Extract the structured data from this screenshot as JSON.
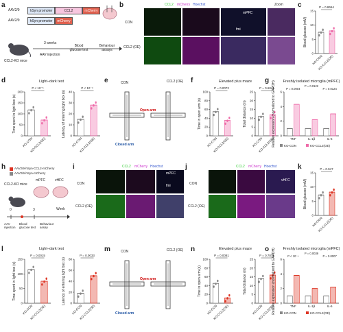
{
  "panel_letters": [
    "a",
    "b",
    "c",
    "d",
    "e",
    "f",
    "g",
    "h",
    "i",
    "j",
    "k",
    "l",
    "m",
    "n",
    "o"
  ],
  "a": {
    "vector1": {
      "prefix": "AAV2/9",
      "promoter": "hSyn promoter",
      "gene": "CCL2",
      "tag": "mCherry"
    },
    "vector2": {
      "prefix": "AAV2/9",
      "promoter": "hSyn promoter",
      "tag": "mCherry"
    },
    "mouse_label": "CCL2-KO mice",
    "step1": "3 weeks",
    "step1_sub": "AAV injection",
    "step2": "Blood glucose test",
    "step3": "Behaviour assays"
  },
  "b": {
    "header_ccl2": "CCL2",
    "header_mcherry": "mCherry",
    "header_hoechst": "Hoechst",
    "zoom": "Zoom",
    "row_con": "CON",
    "row_oe": "CCL2 (OE)",
    "region": "mPFC",
    "fmi": "fmi"
  },
  "i": {
    "header_ccl2": "CCL2",
    "header_mcherry": "mCherry",
    "header_hoechst": "Hoechst",
    "row_con": "CON",
    "row_oe": "CCL2 (OE)",
    "region": "mPFC",
    "fmi": "fmi"
  },
  "j": {
    "header_ccl2": "CCL2",
    "header_mcherry": "mCherry",
    "header_hoechst": "Hoechst",
    "row_con": "CON",
    "row_oe": "CCL2 (OE)",
    "region": "vHFC"
  },
  "h": {
    "line1": "AAV2/9-hSyn-CCL2-mCherry",
    "line2": "AAV2/9-hSyn-mCherry",
    "mouse_label": "CCL2-KO mice",
    "region1": "mPFC",
    "region2": "vHFC",
    "t0": "0",
    "t3": "3",
    "week": "Week",
    "ev1": "AAV injection",
    "ev2": "Blood glucose test",
    "ev3": "Behaviour assay"
  },
  "e": {
    "con": "CON",
    "oe": "CCL2 (OE)",
    "open": "Open arm",
    "closed": "Closed arm"
  },
  "m": {
    "con": "CON",
    "oe": "CCL2 (OE)",
    "open": "Open arm",
    "closed": "Closed arm"
  },
  "colors": {
    "ctrl": "#888888",
    "oe_top": "#ee6aa8",
    "oe_bottom": "#dd3322",
    "green": "#33cc33",
    "magenta": "#cc33cc",
    "label_red": "#cc0000",
    "label_blue": "#1a4fa0"
  },
  "chart_data": [
    {
      "panel": "c",
      "type": "bar",
      "ylabel": "Blood glucose (mM)",
      "ylim": [
        0,
        15
      ],
      "yticks": [
        0,
        5,
        10,
        15
      ],
      "categories": [
        "KO-CON",
        "KO-CCL2(OE)"
      ],
      "values": [
        7.5,
        8.0
      ],
      "p": "P = 0.8664",
      "color": "oe_top"
    },
    {
      "panel": "d1",
      "type": "bar",
      "title": "Light–dark test",
      "ylabel": "Time spent in light box (s)",
      "ylim": [
        0,
        200
      ],
      "yticks": [
        0,
        50,
        100,
        150,
        200
      ],
      "categories": [
        "KO-CON",
        "KO-CCL2(OE)"
      ],
      "values": [
        118,
        72
      ],
      "p": "P < 10⁻⁶",
      "color": "oe_top"
    },
    {
      "panel": "d2",
      "type": "bar",
      "ylabel": "Latency of entering light box (s)",
      "ylim": [
        0,
        40
      ],
      "yticks": [
        0,
        10,
        20,
        30,
        40
      ],
      "categories": [
        "KO-CON",
        "KO-CCL2(OE)"
      ],
      "values": [
        15,
        28
      ],
      "p": "P < 10⁻⁴",
      "color": "oe_top"
    },
    {
      "panel": "f1",
      "type": "bar",
      "title": "Elevated plus maze",
      "ylabel": "Time in open arm (s)",
      "ylim": [
        0,
        100
      ],
      "yticks": [
        0,
        20,
        40,
        60,
        80,
        100
      ],
      "categories": [
        "KO-CON",
        "KO-CCL2(OE)"
      ],
      "values": [
        55,
        35
      ],
      "p": "P = 0.0072",
      "color": "oe_top"
    },
    {
      "panel": "f2",
      "type": "bar",
      "ylabel": "Total distance (m)",
      "ylim": [
        0,
        25
      ],
      "yticks": [
        0,
        5,
        10,
        15,
        20,
        25
      ],
      "categories": [
        "KO-CON",
        "KO-CCL2(OE)"
      ],
      "values": [
        11,
        12
      ],
      "p": "P = 0.6041",
      "color": "oe_top"
    },
    {
      "panel": "g",
      "type": "bar",
      "title": "Freshly isolated microglia (mPFC)",
      "ylabel": "Relative expression (normalized to GAPDH)",
      "ylim": [
        0,
        6
      ],
      "yticks": [
        0,
        2,
        4,
        6
      ],
      "categories": [
        "TNF",
        "IL-1β",
        "IL-6"
      ],
      "series": [
        {
          "name": "KO-CON",
          "values": [
            1.0,
            1.0,
            1.0
          ]
        },
        {
          "name": "KO-CCL2(OE)",
          "values": [
            4.3,
            2.2,
            3.0
          ]
        }
      ],
      "p": [
        "P = 0.0004",
        "P = 0.0122",
        "P = 0.0124"
      ],
      "color": "oe_top"
    },
    {
      "panel": "k",
      "type": "bar",
      "ylabel": "Blood glucose (mM)",
      "ylim": [
        0,
        15
      ],
      "yticks": [
        0,
        5,
        10,
        15
      ],
      "categories": [
        "KO-CON",
        "KO-CCL2(OE)"
      ],
      "values": [
        7.2,
        8.2
      ],
      "p": "P = 0.947",
      "color": "oe_bottom"
    },
    {
      "panel": "l1",
      "type": "bar",
      "title": "Light–dark test",
      "ylabel": "Time spent in light box (s)",
      "ylim": [
        0,
        150
      ],
      "yticks": [
        0,
        50,
        100,
        150
      ],
      "categories": [
        "KO-CON",
        "KO-CCL2(OE)"
      ],
      "values": [
        115,
        75
      ],
      "p": "P = 0.0015",
      "color": "oe_bottom"
    },
    {
      "panel": "l2",
      "type": "bar",
      "ylabel": "Latency of entering light box (s)",
      "ylim": [
        0,
        80
      ],
      "yticks": [
        0,
        20,
        40,
        60,
        80
      ],
      "categories": [
        "KO-CON",
        "KO-CCL2(OE)"
      ],
      "values": [
        18,
        50
      ],
      "p": "P = 0.0033",
      "color": "oe_bottom"
    },
    {
      "panel": "n1",
      "type": "bar",
      "title": "Elevated plus maze",
      "ylabel": "Time in open arm (s)",
      "ylim": [
        0,
        100
      ],
      "yticks": [
        0,
        20,
        40,
        60,
        80,
        100
      ],
      "categories": [
        "KO-CON",
        "KO-CCL2(OE)"
      ],
      "values": [
        45,
        12
      ],
      "p": "P = 0.0081",
      "color": "oe_bottom"
    },
    {
      "panel": "n2",
      "type": "bar",
      "ylabel": "Total distance (m)",
      "ylim": [
        0,
        25
      ],
      "yticks": [
        0,
        5,
        10,
        15,
        20,
        25
      ],
      "categories": [
        "KO-CON",
        "KO-CCL2(OE)"
      ],
      "values": [
        14,
        16
      ],
      "p": "P = 0.7871",
      "color": "oe_bottom"
    },
    {
      "panel": "o",
      "type": "bar",
      "title": "Freshly isolated microglia (mPFC)",
      "ylabel": "Relative expression (normalized to GAPDH)",
      "ylim": [
        0,
        6
      ],
      "yticks": [
        0,
        2,
        4,
        6
      ],
      "categories": [
        "TNF",
        "IL-1β",
        "IL-6"
      ],
      "series": [
        {
          "name": "KO-CON",
          "values": [
            1.0,
            1.0,
            1.0
          ]
        },
        {
          "name": "KO-CCL2(OE)",
          "values": [
            3.8,
            2.0,
            2.2
          ]
        }
      ],
      "p": [
        "P < 10⁻⁴",
        "P = 0.0039",
        "P = 0.0007"
      ],
      "color": "oe_bottom"
    }
  ]
}
